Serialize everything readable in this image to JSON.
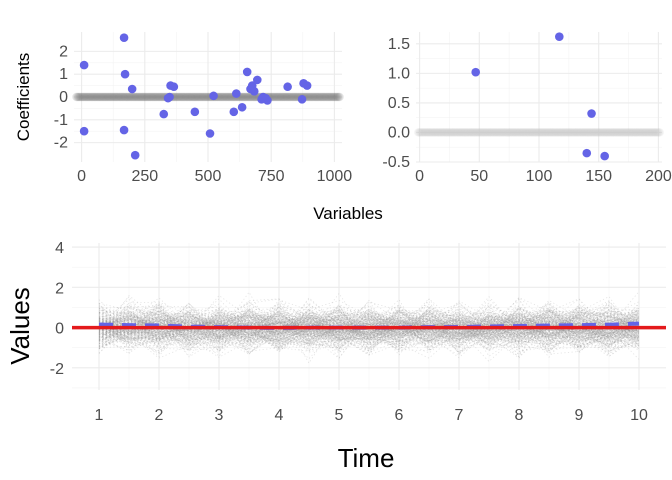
{
  "chart_data": [
    {
      "type": "scatter",
      "panel": "top-left",
      "ylabel": "Coefficients",
      "xlim": [
        -30,
        1030
      ],
      "ylim": [
        -2.85,
        2.85
      ],
      "x_ticks": [
        0,
        250,
        500,
        750,
        1000
      ],
      "y_ticks": [
        -2,
        -1,
        0,
        1,
        2
      ],
      "zero_band_color": "#6e6e6e",
      "point_color": "#6464e6",
      "points": [
        {
          "x": 10,
          "y": 1.4
        },
        {
          "x": 10,
          "y": -1.5
        },
        {
          "x": 168,
          "y": 2.6
        },
        {
          "x": 172,
          "y": 1.0
        },
        {
          "x": 168,
          "y": -1.45
        },
        {
          "x": 200,
          "y": 0.35
        },
        {
          "x": 212,
          "y": -2.55
        },
        {
          "x": 325,
          "y": -0.75
        },
        {
          "x": 342,
          "y": -0.05
        },
        {
          "x": 352,
          "y": 0.5
        },
        {
          "x": 365,
          "y": 0.45
        },
        {
          "x": 348,
          "y": 0.0
        },
        {
          "x": 448,
          "y": -0.65
        },
        {
          "x": 508,
          "y": -1.6
        },
        {
          "x": 522,
          "y": 0.05
        },
        {
          "x": 602,
          "y": -0.65
        },
        {
          "x": 612,
          "y": 0.15
        },
        {
          "x": 635,
          "y": -0.45
        },
        {
          "x": 655,
          "y": 1.1
        },
        {
          "x": 668,
          "y": 0.35
        },
        {
          "x": 675,
          "y": 0.5
        },
        {
          "x": 683,
          "y": 0.25
        },
        {
          "x": 695,
          "y": 0.75
        },
        {
          "x": 712,
          "y": -0.1
        },
        {
          "x": 718,
          "y": 0.0
        },
        {
          "x": 728,
          "y": -0.05
        },
        {
          "x": 815,
          "y": 0.45
        },
        {
          "x": 872,
          "y": -0.1
        },
        {
          "x": 878,
          "y": 0.6
        },
        {
          "x": 892,
          "y": 0.5
        },
        {
          "x": 735,
          "y": -0.15
        }
      ]
    },
    {
      "type": "scatter",
      "panel": "top-right",
      "xlim": [
        -3,
        203
      ],
      "ylim": [
        -0.5,
        1.7
      ],
      "x_ticks": [
        0,
        50,
        100,
        150,
        200
      ],
      "y_ticks": [
        -0.5,
        0.0,
        0.5,
        1.0,
        1.5
      ],
      "y_tick_labels": [
        "-0.5",
        "0.0",
        "0.5",
        "1.0",
        "1.5"
      ],
      "zero_band_color": "#c8c8c8",
      "point_color": "#6464e6",
      "points": [
        {
          "x": 47,
          "y": 1.02
        },
        {
          "x": 117,
          "y": 1.62
        },
        {
          "x": 144,
          "y": 0.32
        },
        {
          "x": 140,
          "y": -0.35
        },
        {
          "x": 155,
          "y": -0.4
        }
      ]
    },
    {
      "type": "line",
      "panel": "bottom",
      "xlabel": "Time",
      "ylabel": "Values",
      "xlim": [
        0.55,
        10.45
      ],
      "ylim": [
        -3.1,
        4.2
      ],
      "x_ticks": [
        1,
        2,
        3,
        4,
        5,
        6,
        7,
        8,
        9,
        10
      ],
      "y_ticks": [
        -2,
        0,
        2,
        4
      ],
      "zero_line_color": "#e41a1c",
      "mean_line_color": "#6464e6",
      "mean_series": {
        "x": [
          1,
          1.5,
          2,
          2.5,
          3,
          3.5,
          4,
          4.5,
          5,
          5.5,
          6,
          6.5,
          7,
          7.5,
          8,
          8.5,
          9,
          9.5,
          10
        ],
        "y": [
          0.15,
          0.12,
          0.1,
          0.05,
          0.02,
          0.0,
          -0.02,
          0.0,
          0.0,
          0.0,
          0.0,
          0.02,
          0.03,
          0.05,
          0.08,
          0.1,
          0.12,
          0.14,
          0.2
        ]
      },
      "background_series_count": 250,
      "background_series_color": "#9a9a9a"
    }
  ],
  "shared": {
    "top_xlabel": "Variables"
  }
}
